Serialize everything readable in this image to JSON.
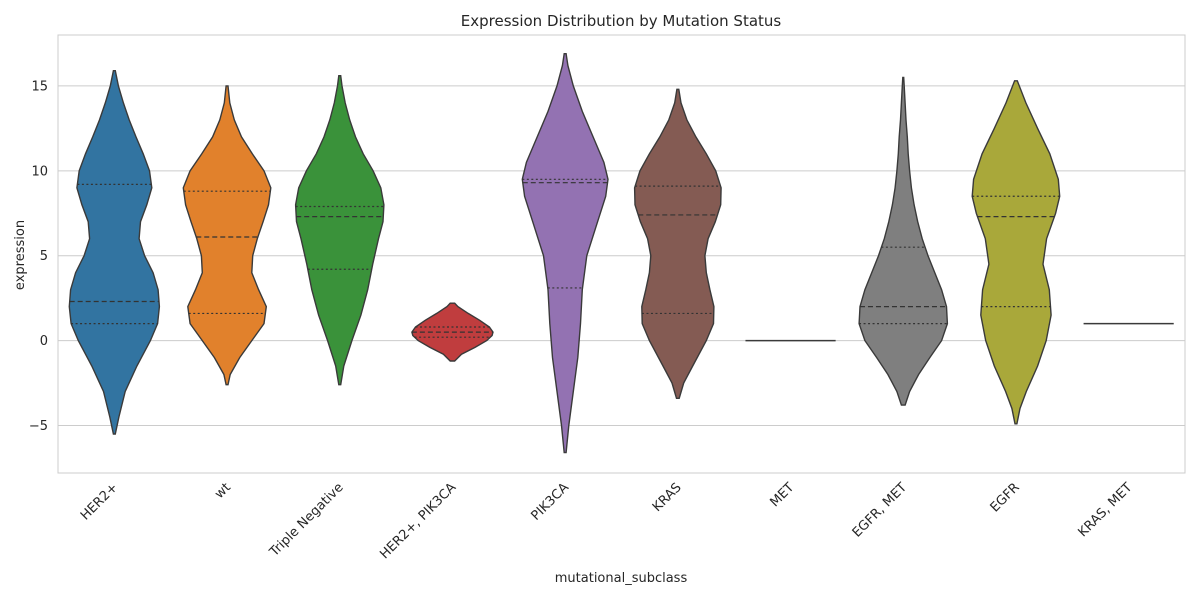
{
  "chart_data": {
    "type": "violin",
    "title": "Expression Distribution by Mutation Status",
    "xlabel": "mutational_subclass",
    "ylabel": "expression",
    "ylim": [
      -7.8,
      18.0
    ],
    "yticks": [
      -5,
      0,
      5,
      10,
      15
    ],
    "grid": "horizontal",
    "inner": "quartile",
    "categories": [
      "HER2+",
      "wt",
      "Triple Negative",
      "HER2+, PIK3CA",
      "PIK3CA",
      "KRAS",
      "MET",
      "EGFR, MET",
      "EGFR",
      "KRAS, MET"
    ],
    "series": [
      {
        "category": "HER2+",
        "color": "#3274a1",
        "min": -5.5,
        "max": 15.9,
        "q1": 1.0,
        "median": 2.3,
        "q3": 9.2,
        "density": [
          [
            -5.5,
            0.02
          ],
          [
            -4.5,
            0.1
          ],
          [
            -3,
            0.24
          ],
          [
            -1.5,
            0.5
          ],
          [
            0,
            0.8
          ],
          [
            1,
            0.96
          ],
          [
            2,
            1.0
          ],
          [
            3,
            0.97
          ],
          [
            4,
            0.86
          ],
          [
            5,
            0.67
          ],
          [
            6,
            0.55
          ],
          [
            7,
            0.58
          ],
          [
            8,
            0.72
          ],
          [
            9,
            0.83
          ],
          [
            10,
            0.78
          ],
          [
            11,
            0.64
          ],
          [
            12,
            0.48
          ],
          [
            13,
            0.33
          ],
          [
            14,
            0.2
          ],
          [
            15,
            0.09
          ],
          [
            15.9,
            0.02
          ]
        ]
      },
      {
        "category": "wt",
        "color": "#e1812c",
        "min": -2.6,
        "max": 15.0,
        "q1": 1.6,
        "median": 6.1,
        "q3": 8.8,
        "density": [
          [
            -2.6,
            0.02
          ],
          [
            -2,
            0.07
          ],
          [
            -1,
            0.28
          ],
          [
            0,
            0.55
          ],
          [
            1,
            0.82
          ],
          [
            2,
            0.87
          ],
          [
            3,
            0.7
          ],
          [
            4,
            0.55
          ],
          [
            5,
            0.57
          ],
          [
            6,
            0.67
          ],
          [
            7,
            0.8
          ],
          [
            8,
            0.92
          ],
          [
            9,
            0.97
          ],
          [
            10,
            0.82
          ],
          [
            11,
            0.56
          ],
          [
            12,
            0.32
          ],
          [
            13,
            0.16
          ],
          [
            14,
            0.06
          ],
          [
            15,
            0.02
          ]
        ]
      },
      {
        "category": "Triple Negative",
        "color": "#3a923a",
        "min": -2.6,
        "max": 15.6,
        "q1": 4.2,
        "median": 7.3,
        "q3": 7.9,
        "density": [
          [
            -2.6,
            0.02
          ],
          [
            -1.5,
            0.09
          ],
          [
            0,
            0.27
          ],
          [
            1.5,
            0.47
          ],
          [
            3,
            0.62
          ],
          [
            4.5,
            0.73
          ],
          [
            6,
            0.86
          ],
          [
            7,
            0.96
          ],
          [
            8,
            0.98
          ],
          [
            9,
            0.91
          ],
          [
            10,
            0.74
          ],
          [
            11,
            0.52
          ],
          [
            12,
            0.35
          ],
          [
            13,
            0.22
          ],
          [
            14,
            0.12
          ],
          [
            15,
            0.05
          ],
          [
            15.6,
            0.02
          ]
        ]
      },
      {
        "category": "HER2+, PIK3CA",
        "color": "#c03d3e",
        "min": -1.2,
        "max": 2.2,
        "q1": 0.2,
        "median": 0.5,
        "q3": 0.8,
        "density": [
          [
            -1.2,
            0.05
          ],
          [
            -0.8,
            0.2
          ],
          [
            -0.4,
            0.5
          ],
          [
            0,
            0.76
          ],
          [
            0.3,
            0.88
          ],
          [
            0.5,
            0.9
          ],
          [
            0.8,
            0.82
          ],
          [
            1.2,
            0.6
          ],
          [
            1.6,
            0.35
          ],
          [
            2,
            0.12
          ],
          [
            2.2,
            0.05
          ]
        ]
      },
      {
        "category": "PIK3CA",
        "color": "#9372b2",
        "min": -6.6,
        "max": 16.9,
        "q1": 3.1,
        "median": 9.3,
        "q3": 9.5,
        "density": [
          [
            -6.6,
            0.02
          ],
          [
            -5,
            0.08
          ],
          [
            -3,
            0.18
          ],
          [
            -1,
            0.28
          ],
          [
            1,
            0.34
          ],
          [
            3,
            0.38
          ],
          [
            5,
            0.48
          ],
          [
            7,
            0.72
          ],
          [
            8.5,
            0.9
          ],
          [
            9.5,
            0.95
          ],
          [
            10.5,
            0.86
          ],
          [
            12,
            0.62
          ],
          [
            13.5,
            0.38
          ],
          [
            15,
            0.18
          ],
          [
            16.2,
            0.06
          ],
          [
            16.9,
            0.02
          ]
        ]
      },
      {
        "category": "KRAS",
        "color": "#845b53",
        "min": -3.4,
        "max": 14.8,
        "q1": 1.6,
        "median": 7.4,
        "q3": 9.1,
        "density": [
          [
            -3.4,
            0.03
          ],
          [
            -2.5,
            0.13
          ],
          [
            -1.5,
            0.33
          ],
          [
            0,
            0.63
          ],
          [
            1,
            0.79
          ],
          [
            2,
            0.8
          ],
          [
            3,
            0.71
          ],
          [
            4,
            0.63
          ],
          [
            5,
            0.6
          ],
          [
            6,
            0.67
          ],
          [
            7,
            0.83
          ],
          [
            8,
            0.95
          ],
          [
            9,
            0.96
          ],
          [
            10,
            0.84
          ],
          [
            11,
            0.63
          ],
          [
            12,
            0.4
          ],
          [
            13,
            0.2
          ],
          [
            14,
            0.07
          ],
          [
            14.8,
            0.02
          ]
        ]
      },
      {
        "category": "MET",
        "color": "#d684bd",
        "min": 0.0,
        "max": 0.0,
        "q1": 0.0,
        "median": 0.0,
        "q3": 0.0,
        "density": [
          [
            0,
            1.0
          ]
        ]
      },
      {
        "category": "EGFR, MET",
        "color": "#7f7f7f",
        "min": -3.8,
        "max": 15.5,
        "q1": 1.0,
        "median": 2.0,
        "q3": 5.5,
        "density": [
          [
            -3.8,
            0.04
          ],
          [
            -3,
            0.14
          ],
          [
            -2,
            0.34
          ],
          [
            -1,
            0.59
          ],
          [
            0,
            0.85
          ],
          [
            1,
            0.98
          ],
          [
            2,
            0.96
          ],
          [
            3,
            0.85
          ],
          [
            4,
            0.7
          ],
          [
            5,
            0.55
          ],
          [
            6,
            0.42
          ],
          [
            7,
            0.32
          ],
          [
            8,
            0.24
          ],
          [
            9,
            0.18
          ],
          [
            10,
            0.14
          ],
          [
            11,
            0.11
          ],
          [
            12,
            0.09
          ],
          [
            13,
            0.06
          ],
          [
            14,
            0.04
          ],
          [
            15,
            0.02
          ],
          [
            15.5,
            0.01
          ]
        ]
      },
      {
        "category": "EGFR",
        "color": "#a9a83a",
        "min": -4.9,
        "max": 15.3,
        "q1": 2.0,
        "median": 7.3,
        "q3": 8.5,
        "density": [
          [
            -4.9,
            0.02
          ],
          [
            -4,
            0.09
          ],
          [
            -3,
            0.23
          ],
          [
            -1.5,
            0.48
          ],
          [
            0,
            0.67
          ],
          [
            1.5,
            0.78
          ],
          [
            3,
            0.74
          ],
          [
            4.5,
            0.6
          ],
          [
            6,
            0.68
          ],
          [
            7.5,
            0.88
          ],
          [
            8.5,
            0.97
          ],
          [
            9.5,
            0.94
          ],
          [
            11,
            0.75
          ],
          [
            12.5,
            0.48
          ],
          [
            14,
            0.22
          ],
          [
            15.3,
            0.03
          ]
        ]
      },
      {
        "category": "KRAS, MET",
        "color": "#2e9ccf",
        "min": 1.0,
        "max": 1.0,
        "q1": 1.0,
        "median": 1.0,
        "q3": 1.0,
        "density": [
          [
            1,
            1.0
          ]
        ]
      }
    ]
  }
}
